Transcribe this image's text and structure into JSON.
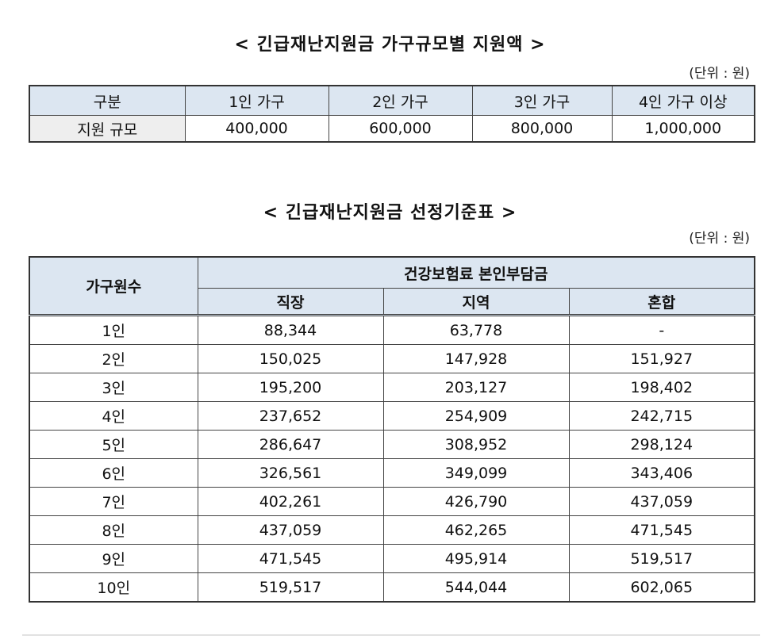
{
  "table1": {
    "title": "< 긴급재난지원금 가구규모별 지원액 >",
    "unit": "(단위 : 원)",
    "headers": [
      "구분",
      "1인 가구",
      "2인 가구",
      "3인 가구",
      "4인 가구 이상"
    ],
    "row": [
      "지원 규모",
      "400,000",
      "600,000",
      "800,000",
      "1,000,000"
    ]
  },
  "table2": {
    "title": "< 긴급재난지원금 선정기준표 >",
    "unit": "(단위 : 원)",
    "col_household": "가구원수",
    "col_group": "건강보험료 본인부담금",
    "sub_headers": [
      "직장",
      "지역",
      "혼합"
    ],
    "rows": [
      [
        "1인",
        "88,344",
        "63,778",
        "-"
      ],
      [
        "2인",
        "150,025",
        "147,928",
        "151,927"
      ],
      [
        "3인",
        "195,200",
        "203,127",
        "198,402"
      ],
      [
        "4인",
        "237,652",
        "254,909",
        "242,715"
      ],
      [
        "5인",
        "286,647",
        "308,952",
        "298,124"
      ],
      [
        "6인",
        "326,561",
        "349,099",
        "343,406"
      ],
      [
        "7인",
        "402,261",
        "426,790",
        "437,059"
      ],
      [
        "8인",
        "437,059",
        "462,265",
        "471,545"
      ],
      [
        "9인",
        "471,545",
        "495,914",
        "519,517"
      ],
      [
        "10인",
        "519,517",
        "544,044",
        "602,065"
      ]
    ]
  }
}
